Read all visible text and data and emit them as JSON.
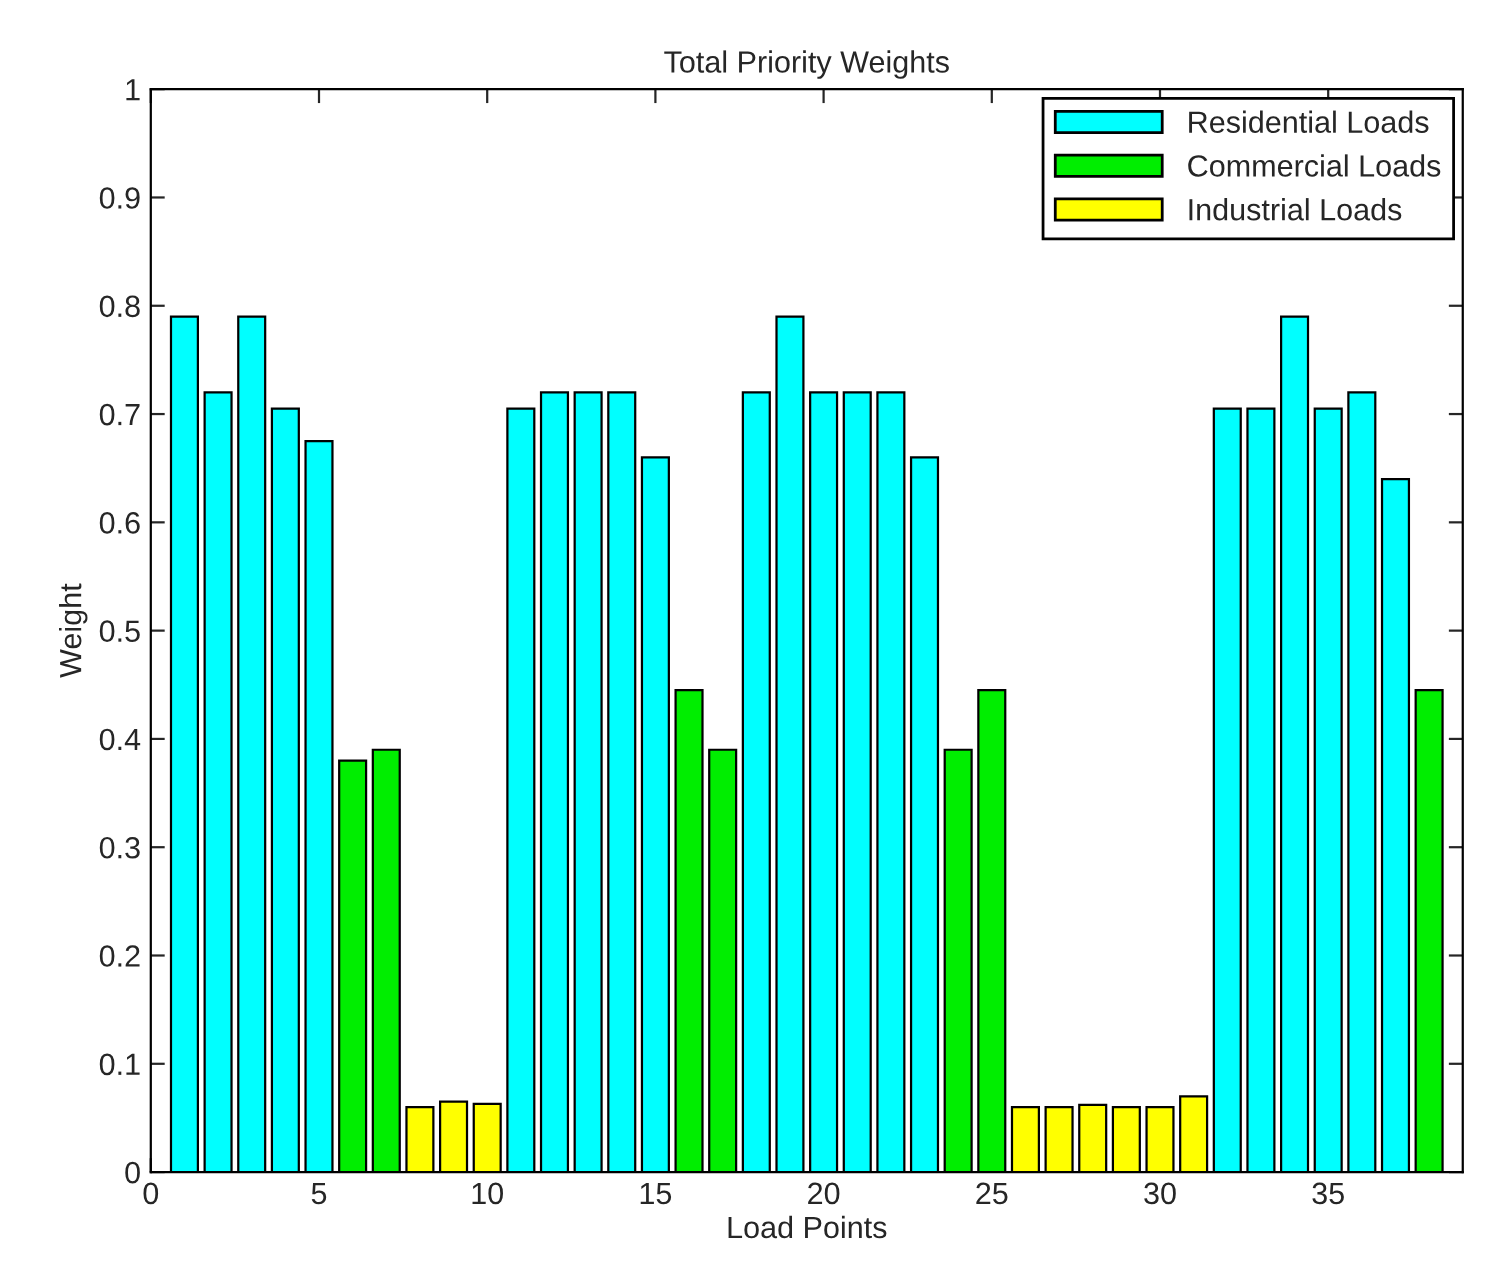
{
  "chart_data": {
    "type": "bar",
    "title": "Total Priority Weights",
    "xlabel": "Load Points",
    "ylabel": "Weight",
    "series": [
      {
        "name": "Residential Loads",
        "color": "#00ffff",
        "x": [
          1,
          2,
          3,
          4,
          5,
          11,
          12,
          13,
          14,
          15,
          18,
          19,
          20,
          21,
          22,
          23,
          32,
          33,
          34,
          35,
          36,
          37
        ],
        "values": [
          0.79,
          0.72,
          0.79,
          0.705,
          0.675,
          0.705,
          0.72,
          0.72,
          0.72,
          0.66,
          0.72,
          0.79,
          0.72,
          0.72,
          0.72,
          0.66,
          0.705,
          0.705,
          0.79,
          0.705,
          0.72,
          0.64
        ]
      },
      {
        "name": "Commercial Loads",
        "color": "#00ee00",
        "x": [
          6,
          7,
          16,
          17,
          24,
          25,
          38
        ],
        "values": [
          0.38,
          0.39,
          0.445,
          0.39,
          0.39,
          0.445,
          0.445
        ]
      },
      {
        "name": "Industrial Loads",
        "color": "#ffff00",
        "x": [
          8,
          9,
          10,
          26,
          27,
          28,
          29,
          30,
          31
        ],
        "values": [
          0.06,
          0.065,
          0.063,
          0.06,
          0.06,
          0.062,
          0.06,
          0.06,
          0.07
        ]
      }
    ],
    "xlim": [
      0,
      39
    ],
    "xticks": [
      0,
      5,
      10,
      15,
      20,
      25,
      30,
      35
    ],
    "ylim": [
      0,
      1
    ],
    "yticks": [
      0,
      {
        "value": 0.1,
        "label": "0.1"
      },
      {
        "value": 0.2,
        "label": "0.2"
      },
      {
        "value": 0.3,
        "label": "0.3"
      },
      {
        "value": 0.4,
        "label": "0.4"
      },
      {
        "value": 0.5,
        "label": "0.5"
      },
      {
        "value": 0.6,
        "label": "0.6"
      },
      {
        "value": 0.7,
        "label": "0.7"
      },
      {
        "value": 0.8,
        "label": "0.8"
      },
      {
        "value": 0.9,
        "label": "0.9"
      },
      1
    ],
    "grid": false,
    "legend": "top right"
  }
}
